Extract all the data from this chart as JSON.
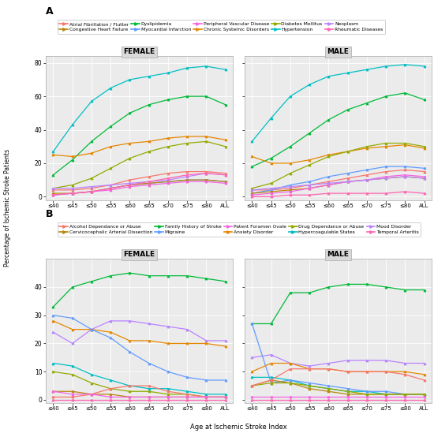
{
  "x_labels": [
    "≤40",
    "≤45",
    "≤50",
    "≤55",
    "≤60",
    "≤65",
    "≤70",
    "≤75",
    "≤80",
    "ALL"
  ],
  "panel_A": {
    "female": {
      "Hypertension": [
        27,
        43,
        57,
        65,
        70,
        72,
        74,
        77,
        78,
        76
      ],
      "Dyslipidemia": [
        13,
        22,
        33,
        42,
        50,
        55,
        58,
        60,
        60,
        55
      ],
      "Chronic Systemic Disorders": [
        25,
        24,
        26,
        30,
        32,
        33,
        35,
        36,
        36,
        34
      ],
      "Diabetes Mellitus": [
        5,
        7,
        11,
        17,
        23,
        27,
        30,
        32,
        33,
        30
      ],
      "Atrial Fibrillation / Flutter": [
        4,
        4,
        5,
        7,
        10,
        12,
        14,
        15,
        15,
        14
      ],
      "Myocardial Infarction": [
        1,
        2,
        3,
        5,
        7,
        8,
        9,
        10,
        10,
        9
      ],
      "Congestive Heart Failure": [
        2,
        2,
        3,
        5,
        7,
        8,
        9,
        10,
        10,
        9
      ],
      "Peripheral Vascular Disease": [
        1,
        2,
        3,
        4,
        6,
        7,
        8,
        9,
        9,
        8
      ],
      "Neoplasm": [
        5,
        5,
        6,
        7,
        8,
        9,
        10,
        12,
        14,
        13
      ],
      "Rheumatic Diseases": [
        1,
        2,
        3,
        5,
        7,
        9,
        11,
        13,
        14,
        13
      ]
    },
    "male": {
      "Hypertension": [
        33,
        47,
        60,
        67,
        72,
        74,
        76,
        78,
        79,
        78
      ],
      "Dyslipidemia": [
        18,
        23,
        30,
        38,
        46,
        52,
        56,
        60,
        62,
        58
      ],
      "Chronic Systemic Disorders": [
        24,
        20,
        20,
        22,
        25,
        27,
        29,
        30,
        31,
        29
      ],
      "Diabetes Mellitus": [
        5,
        8,
        14,
        19,
        24,
        27,
        30,
        32,
        32,
        30
      ],
      "Atrial Fibrillation / Flutter": [
        4,
        4,
        5,
        7,
        9,
        11,
        13,
        15,
        16,
        15
      ],
      "Myocardial Infarction": [
        2,
        4,
        7,
        9,
        12,
        14,
        16,
        18,
        18,
        17
      ],
      "Congestive Heart Failure": [
        2,
        3,
        4,
        5,
        7,
        9,
        10,
        11,
        12,
        11
      ],
      "Peripheral Vascular Disease": [
        1,
        2,
        3,
        5,
        7,
        9,
        10,
        12,
        13,
        12
      ],
      "Neoplasm": [
        4,
        5,
        6,
        7,
        8,
        9,
        10,
        11,
        12,
        11
      ],
      "Rheumatic Diseases": [
        0,
        0,
        1,
        1,
        2,
        2,
        2,
        2,
        3,
        2
      ]
    }
  },
  "panel_B": {
    "female": {
      "Family History of Stroke": [
        33,
        40,
        42,
        44,
        45,
        44,
        44,
        44,
        43,
        42
      ],
      "Mood Disorder": [
        24,
        20,
        25,
        28,
        28,
        27,
        26,
        25,
        21,
        21
      ],
      "Hypercoagulable States": [
        13,
        12,
        9,
        7,
        5,
        4,
        4,
        3,
        2,
        2
      ],
      "Anxiety Disorder": [
        28,
        25,
        25,
        24,
        21,
        21,
        20,
        20,
        20,
        19
      ],
      "Migraine": [
        30,
        29,
        25,
        22,
        17,
        13,
        10,
        8,
        7,
        7
      ],
      "Cervicocephalic Arterial Dissection": [
        3,
        3,
        2,
        2,
        1,
        1,
        1,
        1,
        1,
        1
      ],
      "Drug Dependance or Abuse": [
        10,
        9,
        6,
        4,
        3,
        3,
        2,
        2,
        1,
        1
      ],
      "Alcohol Dependance or Abuse": [
        1,
        1,
        2,
        4,
        5,
        5,
        3,
        2,
        1,
        1
      ],
      "Patent Foramen Ovale": [
        3,
        2,
        2,
        1,
        1,
        1,
        1,
        1,
        1,
        1
      ],
      "Temporal Arteritis": [
        0,
        0,
        0,
        0,
        0,
        0,
        0,
        0,
        0,
        0
      ]
    },
    "male": {
      "Family History of Stroke": [
        27,
        27,
        38,
        38,
        40,
        41,
        41,
        40,
        39,
        39
      ],
      "Mood Disorder": [
        15,
        16,
        13,
        12,
        13,
        14,
        14,
        14,
        13,
        13
      ],
      "Hypercoagulable States": [
        8,
        8,
        7,
        5,
        4,
        3,
        3,
        2,
        2,
        2
      ],
      "Anxiety Disorder": [
        10,
        13,
        13,
        11,
        11,
        10,
        10,
        10,
        10,
        9
      ],
      "Migraine": [
        27,
        6,
        7,
        6,
        5,
        4,
        3,
        3,
        2,
        2
      ],
      "Cervicocephalic Arterial Dissection": [
        5,
        7,
        6,
        4,
        3,
        2,
        2,
        2,
        2,
        2
      ],
      "Drug Dependance or Abuse": [
        5,
        6,
        6,
        5,
        4,
        3,
        2,
        2,
        2,
        2
      ],
      "Alcohol Dependance or Abuse": [
        5,
        7,
        11,
        11,
        11,
        10,
        10,
        10,
        9,
        7
      ],
      "Patent Foramen Ovale": [
        1,
        1,
        1,
        1,
        1,
        1,
        1,
        1,
        1,
        1
      ],
      "Temporal Arteritis": [
        0,
        0,
        0,
        0,
        0,
        0,
        0,
        0,
        0,
        0
      ]
    }
  },
  "colors_A": {
    "Atrial Fibrillation / Flutter": "#F8766D",
    "Congestive Heart Failure": "#B8860B",
    "Dyslipidemia": "#00BA38",
    "Myocardial Infarction": "#619CFF",
    "Peripheral Vascular Disease": "#F564E3",
    "Chronic Systemic Disorders": "#E58700",
    "Diabetes Mellitus": "#93AA00",
    "Hypertension": "#00BFC4",
    "Neoplasm": "#B983FF",
    "Rheumatic Diseases": "#FF64B0"
  },
  "colors_B": {
    "Alcohol Dependance or Abuse": "#F8766D",
    "Cervicocephalic Arterial Dissection": "#B8860B",
    "Family History of Stroke": "#00BA38",
    "Migraine": "#619CFF",
    "Patent Foramen Ovale": "#F564E3",
    "Anxiety Disorder": "#E58700",
    "Drug Dependance or Abuse": "#93AA00",
    "Hypercoagulable States": "#00BFC4",
    "Mood Disorder": "#B983FF",
    "Temporal Arteritis": "#FF64B0"
  },
  "legend_A_row1": [
    "Atrial Fibrillation / Flutter",
    "Congestive Heart Failure",
    "Dyslipidemia",
    "Myocardial Infarction",
    "Peripheral Vascular Disease"
  ],
  "legend_A_row2": [
    "Chronic Systemic Disorders",
    "Diabetes Mellitus",
    "Hypertension",
    "Neoplasm",
    "Rheumatic Diseases"
  ],
  "legend_B_row1": [
    "Alcohol Dependance or Abuse",
    "Cervicocephalic Arterial Dissection",
    "Family History of Stroke",
    "Migraine",
    "Patent Foramen Ovale"
  ],
  "legend_B_row2": [
    "Anxiety Disorder",
    "Drug Dependance or Abuse",
    "Hypercoagulable States",
    "Mood Disorder",
    "Temporal Arteritis"
  ],
  "ylabel": "Percentage of Ischemic Stroke Patients",
  "xlabel": "Age at Ischemic Stroke Index",
  "bg_color": "#EBEBEB",
  "panel_title_bg": "#D9D9D9"
}
